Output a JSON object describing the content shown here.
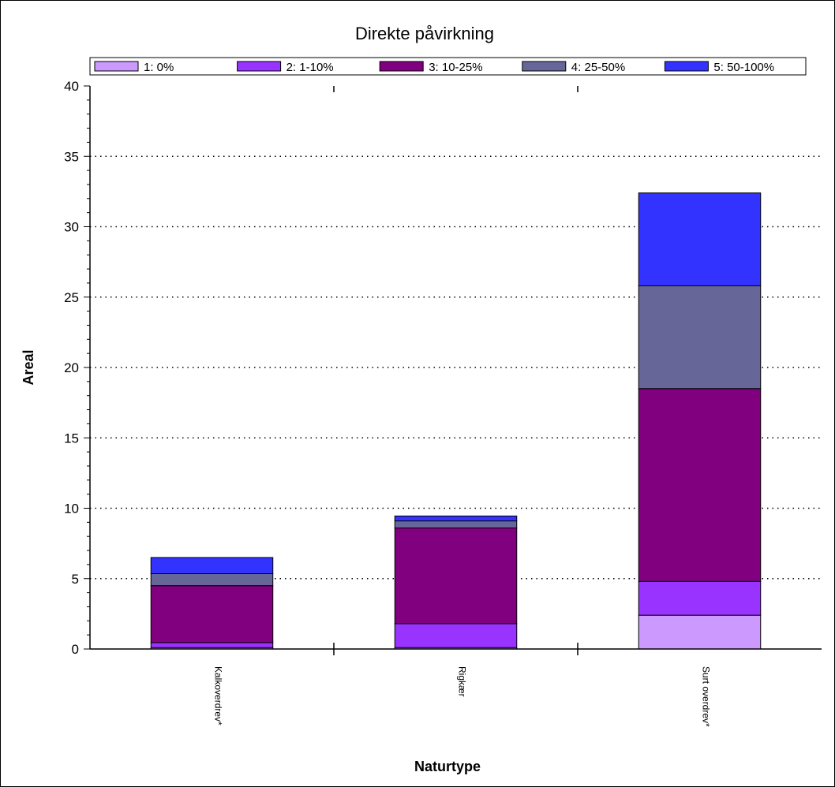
{
  "chart_data": {
    "type": "bar",
    "stacked": true,
    "title": "Direkte påvirkning",
    "xlabel": "Naturtype",
    "ylabel": "Areal",
    "ylim": [
      0,
      40
    ],
    "yticks": [
      0,
      5,
      10,
      15,
      20,
      25,
      30,
      35,
      40
    ],
    "grid": "horizontal-dotted",
    "legend_position": "top",
    "categories": [
      "Kalkoverdrev*",
      "Rigkær",
      "Surt overdrev*"
    ],
    "series": [
      {
        "name": "1: 0%",
        "color": "#CC99FF",
        "values": [
          0.1,
          0.1,
          2.4
        ]
      },
      {
        "name": "2: 1-10%",
        "color": "#9933FF",
        "values": [
          0.35,
          1.7,
          2.4
        ]
      },
      {
        "name": "3: 10-25%",
        "color": "#800080",
        "values": [
          4.05,
          6.8,
          13.7
        ]
      },
      {
        "name": "4: 25-50%",
        "color": "#666699",
        "values": [
          0.85,
          0.5,
          7.3
        ]
      },
      {
        "name": "5: 50-100%",
        "color": "#3333FF",
        "values": [
          1.15,
          0.35,
          6.6
        ]
      }
    ]
  }
}
